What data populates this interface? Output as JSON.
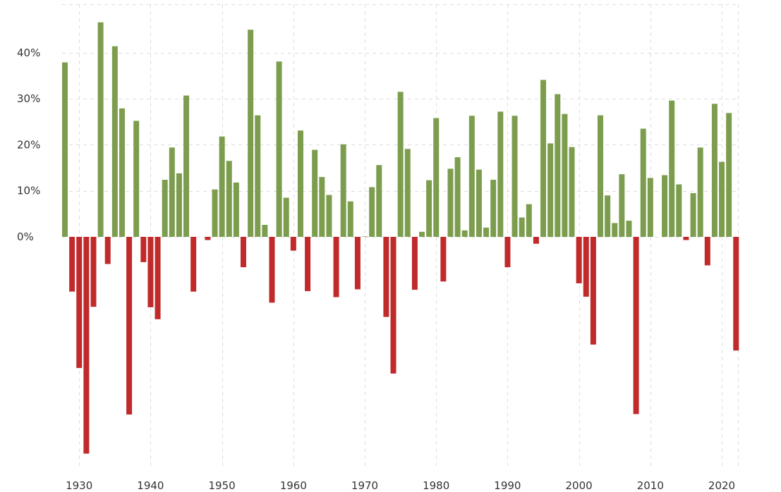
{
  "chart_data": {
    "type": "bar",
    "title": "",
    "xlabel": "",
    "ylabel": "",
    "x": [
      1928,
      1929,
      1930,
      1931,
      1932,
      1933,
      1934,
      1935,
      1936,
      1937,
      1938,
      1939,
      1940,
      1941,
      1942,
      1943,
      1944,
      1945,
      1946,
      1947,
      1948,
      1949,
      1950,
      1951,
      1952,
      1953,
      1954,
      1955,
      1956,
      1957,
      1958,
      1959,
      1960,
      1961,
      1962,
      1963,
      1964,
      1965,
      1966,
      1967,
      1968,
      1969,
      1970,
      1971,
      1972,
      1973,
      1974,
      1975,
      1976,
      1977,
      1978,
      1979,
      1980,
      1981,
      1982,
      1983,
      1984,
      1985,
      1986,
      1987,
      1988,
      1989,
      1990,
      1991,
      1992,
      1993,
      1994,
      1995,
      1996,
      1997,
      1998,
      1999,
      2000,
      2001,
      2002,
      2003,
      2004,
      2005,
      2006,
      2007,
      2008,
      2009,
      2010,
      2011,
      2012,
      2013,
      2014,
      2015,
      2016,
      2017,
      2018,
      2019,
      2020,
      2021,
      2022
    ],
    "values": [
      37.9,
      -11.9,
      -28.5,
      -47.1,
      -15.2,
      46.6,
      -5.9,
      41.4,
      27.9,
      -38.6,
      25.2,
      -5.5,
      -15.3,
      -17.9,
      12.4,
      19.4,
      13.8,
      30.7,
      -11.9,
      0.0,
      -0.7,
      10.3,
      21.8,
      16.5,
      11.8,
      -6.6,
      45.0,
      26.4,
      2.6,
      -14.3,
      38.1,
      8.5,
      -3.0,
      23.1,
      -11.8,
      18.9,
      13.0,
      9.1,
      -13.1,
      20.1,
      7.7,
      -11.4,
      0.1,
      10.8,
      15.6,
      -17.4,
      -29.7,
      31.5,
      19.1,
      -11.5,
      1.1,
      12.3,
      25.8,
      -9.7,
      14.8,
      17.3,
      1.4,
      26.3,
      14.6,
      2.0,
      12.4,
      27.2,
      -6.6,
      26.3,
      4.2,
      7.1,
      -1.5,
      34.1,
      20.3,
      31.0,
      26.7,
      19.5,
      -10.1,
      -13.0,
      -23.4,
      26.4,
      9.0,
      3.0,
      13.6,
      3.5,
      -38.5,
      23.5,
      12.8,
      0.0,
      13.4,
      29.6,
      11.4,
      -0.7,
      9.5,
      19.4,
      -6.2,
      28.9,
      16.3,
      26.9,
      -24.7
    ],
    "ylim": [
      -48,
      51
    ],
    "y_ticks": [
      {
        "value": 40,
        "label": "40%"
      },
      {
        "value": 30,
        "label": "30%"
      },
      {
        "value": 20,
        "label": "20%"
      },
      {
        "value": 10,
        "label": "10%"
      },
      {
        "value": 0,
        "label": "0%"
      }
    ],
    "x_ticks": [
      1930,
      1940,
      1950,
      1960,
      1970,
      1980,
      1990,
      2000,
      2010,
      2020
    ],
    "grid": true,
    "legend": "none",
    "colors": {
      "positive": "#7d9d4e",
      "negative": "#c02a2b",
      "grid": "#dddddd",
      "text": "#333333"
    }
  }
}
